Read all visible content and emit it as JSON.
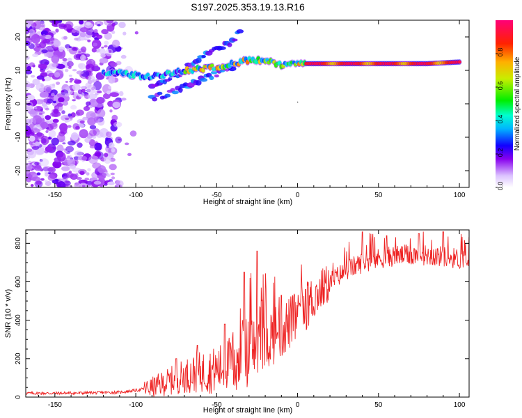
{
  "title": "S197.2025.353.19.13.R16",
  "colors": {
    "background": "#ffffff",
    "snr_line": "#ee2222",
    "spectral_base": "#8800ee"
  },
  "chart_data": [
    {
      "type": "heatmap",
      "name": "spectrogram",
      "xlabel": "Height of straight line (km)",
      "ylabel": "Frequency (Hz)",
      "xlim": [
        -168,
        106
      ],
      "ylim": [
        -25,
        25
      ],
      "x_ticks": [
        -150,
        -100,
        -50,
        0,
        50,
        100
      ],
      "x_tick_labels": [
        "-150",
        "-100",
        "-50",
        "0",
        "50",
        "100"
      ],
      "y_ticks": [
        20,
        10,
        0,
        -10,
        -20
      ],
      "y_tick_labels": [
        "20",
        "10",
        "0",
        "-10",
        "-20"
      ],
      "carrier_path": [
        [
          -120,
          9
        ],
        [
          -110,
          9.5
        ],
        [
          -100,
          8.5
        ],
        [
          -90,
          8
        ],
        [
          -80,
          9
        ],
        [
          -70,
          10
        ],
        [
          -60,
          10.5
        ],
        [
          -50,
          11
        ],
        [
          -40,
          12
        ],
        [
          -30,
          13
        ],
        [
          -20,
          13
        ],
        [
          -10,
          11.5
        ],
        [
          0,
          12
        ],
        [
          10,
          12
        ],
        [
          50,
          12
        ],
        [
          80,
          12
        ],
        [
          100,
          12.5
        ]
      ],
      "upper_branch": [
        [
          -90,
          6
        ],
        [
          -80,
          7
        ],
        [
          -70,
          10
        ],
        [
          -60,
          14
        ],
        [
          -50,
          16
        ],
        [
          -40,
          19
        ],
        [
          -35,
          22
        ]
      ],
      "lower_branch": [
        [
          -90,
          2
        ],
        [
          -80,
          3
        ],
        [
          -70,
          5
        ],
        [
          -60,
          7
        ],
        [
          -50,
          9
        ],
        [
          -40,
          11
        ]
      ],
      "colorbar": {
        "label": "Normalized spectral amplitude",
        "range": [
          0,
          1
        ],
        "ticks": [
          0.0,
          0.2,
          0.4,
          0.6,
          0.8
        ],
        "tick_labels": [
          "0.0",
          "0.2",
          "0.4",
          "0.6",
          "0.8"
        ]
      }
    },
    {
      "type": "line",
      "name": "snr",
      "xlabel": "Height of straight line (km)",
      "ylabel": "SNR (10 * v/v)",
      "xlim": [
        -168,
        106
      ],
      "ylim": [
        0,
        870
      ],
      "x_ticks": [
        -150,
        -100,
        -50,
        0,
        50,
        100
      ],
      "x_tick_labels": [
        "-150",
        "-100",
        "-50",
        "0",
        "50",
        "100"
      ],
      "y_ticks": [
        0,
        200,
        400,
        600,
        800
      ],
      "y_tick_labels": [
        "0",
        "200",
        "400",
        "600",
        "800"
      ],
      "trend": [
        [
          -168,
          20
        ],
        [
          -150,
          20
        ],
        [
          -130,
          22
        ],
        [
          -110,
          25
        ],
        [
          -100,
          35
        ],
        [
          -90,
          50
        ],
        [
          -80,
          80
        ],
        [
          -70,
          110
        ],
        [
          -60,
          130
        ],
        [
          -50,
          140
        ],
        [
          -40,
          190
        ],
        [
          -30,
          240
        ],
        [
          -20,
          300
        ],
        [
          -10,
          350
        ],
        [
          0,
          420
        ],
        [
          10,
          520
        ],
        [
          20,
          600
        ],
        [
          30,
          660
        ],
        [
          40,
          700
        ],
        [
          50,
          720
        ],
        [
          60,
          735
        ],
        [
          70,
          740
        ],
        [
          80,
          740
        ],
        [
          90,
          730
        ],
        [
          100,
          720
        ],
        [
          106,
          715
        ]
      ],
      "spikes": [
        [
          -75,
          200
        ],
        [
          -62,
          270
        ],
        [
          -45,
          380
        ],
        [
          -33,
          650
        ],
        [
          -25,
          760
        ],
        [
          -10,
          530
        ],
        [
          5,
          560
        ],
        [
          40,
          860
        ],
        [
          55,
          840
        ],
        [
          75,
          850
        ],
        [
          90,
          860
        ]
      ]
    }
  ]
}
